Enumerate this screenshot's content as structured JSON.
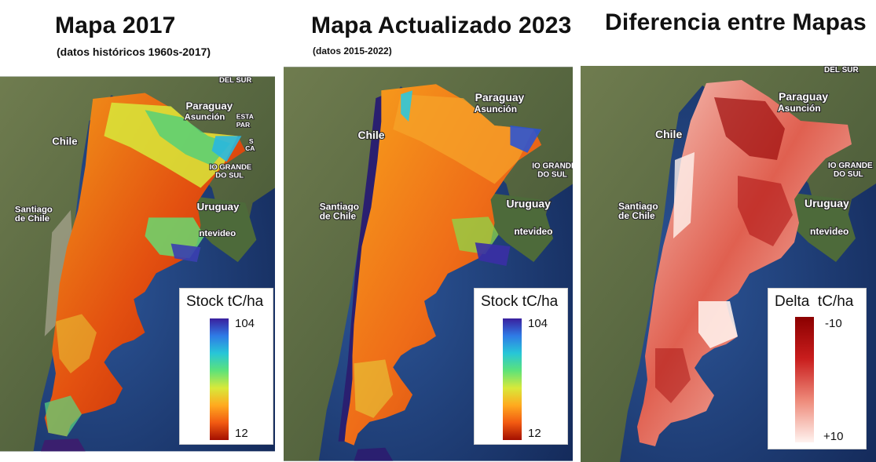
{
  "colors": {
    "ocean": "#1f3f78",
    "land": "#5b6a45",
    "stock_ramp": [
      "#3a1f9e",
      "#2f7be6",
      "#27c6d8",
      "#5ce27a",
      "#d8e93a",
      "#ffaa1f",
      "#f25a12",
      "#a30f00"
    ],
    "delta_ramp": [
      "#8b0000",
      "#c91d1d",
      "#ee8a7a",
      "#fff3ef"
    ]
  },
  "panels": [
    {
      "title": "Mapa 2017",
      "subtitle": "(datos históricos 1960s-2017)",
      "legend": {
        "title": "Stock tC/ha",
        "top": "104",
        "bottom": "12"
      }
    },
    {
      "title": "Mapa Actualizado 2023",
      "subtitle": "(datos 2015-2022)",
      "legend": {
        "title": "Stock tC/ha",
        "top": "104",
        "bottom": "12"
      }
    },
    {
      "title": "Diferencia entre Mapas",
      "subtitle": "",
      "legend": {
        "title": "Delta  tC/ha",
        "top": "-10",
        "bottom": "+10"
      }
    }
  ],
  "map_labels": {
    "chile": "Chile",
    "paraguay": "Paraguay",
    "asuncion": "Asunción",
    "santiago_1": "Santiago",
    "santiago_2": "de Chile",
    "uruguay": "Uruguay",
    "montevideo": "ntevideo",
    "del_sur_top": "DEL SUR",
    "estado_1": "ESTA",
    "estado_2": "PAR",
    "sc_1": "S",
    "sc_2": "CA",
    "rio_grande_1": "IO GRANDE",
    "rio_grande_2": "DO SUL"
  }
}
